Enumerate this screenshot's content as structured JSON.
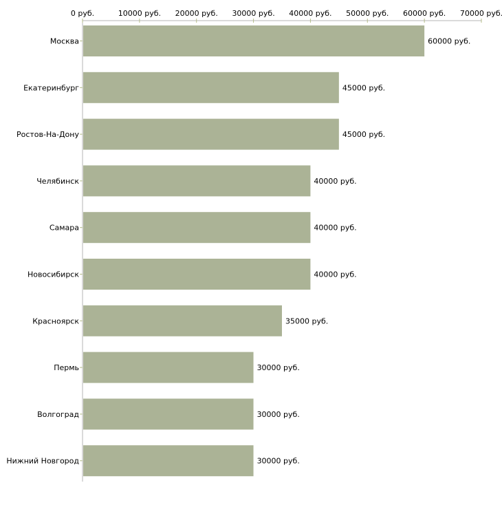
{
  "chart_data": {
    "type": "bar",
    "orientation": "horizontal",
    "title": "",
    "xlabel": "",
    "ylabel": "",
    "unit_suffix": " руб.",
    "xlim": [
      0,
      70000
    ],
    "x_ticks": [
      0,
      10000,
      20000,
      30000,
      40000,
      50000,
      60000,
      70000
    ],
    "x_tick_labels": [
      "0 руб.",
      "10000 руб.",
      "20000 руб.",
      "30000 руб.",
      "40000 руб.",
      "50000 руб.",
      "60000 руб.",
      "70000 руб."
    ],
    "axis_position": "top",
    "grid": false,
    "categories": [
      "Москва",
      "Екатеринбург",
      "Ростов-На-Дону",
      "Челябинск",
      "Самара",
      "Новосибирск",
      "Красноярск",
      "Пермь",
      "Волгоград",
      "Нижний Новгород"
    ],
    "values": [
      60000,
      45000,
      45000,
      40000,
      40000,
      40000,
      35000,
      30000,
      30000,
      30000
    ],
    "data_labels": [
      "60000 руб.",
      "45000 руб.",
      "45000 руб.",
      "40000 руб.",
      "40000 руб.",
      "40000 руб.",
      "35000 руб.",
      "30000 руб.",
      "30000 руб.",
      "30000 руб."
    ],
    "colors": {
      "bar": "#abb396",
      "axis": "#b4b4b4",
      "tick": "#b5bd8a"
    }
  }
}
